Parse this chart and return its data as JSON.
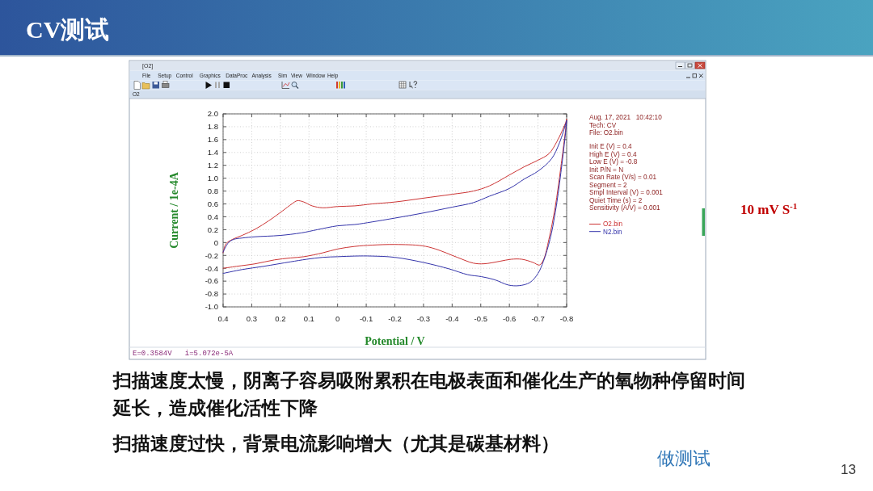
{
  "chart_data": {
    "type": "line",
    "title": "CV测试",
    "xlabel": "Potential / V",
    "ylabel": "Current / 1e-4A",
    "xlim": [
      0.4,
      -0.8
    ],
    "ylim": [
      -1,
      2
    ],
    "xticks": [
      0.4,
      0.3,
      0.2,
      0.1,
      0,
      -0.1,
      -0.2,
      -0.3,
      -0.4,
      -0.5,
      -0.6,
      -0.7,
      -0.8
    ],
    "yticks": [
      {
        "value": -1,
        "label": "-1.0"
      },
      -0.8,
      -0.6,
      -0.4,
      -0.2,
      0,
      0.2,
      0.4,
      0.6,
      0.8,
      {
        "value": 1,
        "label": "1.0"
      },
      1.2,
      1.4,
      1.6,
      1.8,
      {
        "value": 2,
        "label": "2.0"
      }
    ],
    "grid": true,
    "legend": "right",
    "series": [
      {
        "name": "O2.bin",
        "color": "#cc3333",
        "x": [
          0.4,
          0.39,
          0.367,
          0.334,
          0.287,
          0.24,
          0.193,
          0.16,
          0.141,
          0.118,
          0.089,
          0.052,
          0,
          -0.06,
          -0.12,
          -0.2,
          -0.3,
          -0.4,
          -0.474,
          -0.53,
          -0.6,
          -0.653,
          -0.7,
          -0.738,
          -0.766,
          -0.797,
          -0.8,
          -0.78,
          -0.76,
          -0.738,
          -0.719,
          -0.705,
          -0.683,
          -0.644,
          -0.606,
          -0.568,
          -0.512,
          -0.474,
          -0.418,
          -0.342,
          -0.295,
          -0.2,
          -0.12,
          -0.06,
          0,
          0.052,
          0.118,
          0.165,
          0.221,
          0.287,
          0.353,
          0.4
        ],
        "values": [
          -0.16,
          -0.02,
          0.05,
          0.11,
          0.21,
          0.34,
          0.49,
          0.6,
          0.65,
          0.63,
          0.57,
          0.54,
          0.56,
          0.57,
          0.6,
          0.63,
          0.69,
          0.75,
          0.8,
          0.88,
          1.05,
          1.18,
          1.28,
          1.38,
          1.57,
          1.87,
          1.92,
          1.18,
          0.55,
          0.05,
          -0.27,
          -0.35,
          -0.31,
          -0.26,
          -0.26,
          -0.29,
          -0.33,
          -0.32,
          -0.23,
          -0.1,
          -0.05,
          -0.03,
          -0.04,
          -0.06,
          -0.1,
          -0.16,
          -0.22,
          -0.24,
          -0.27,
          -0.33,
          -0.37,
          -0.4
        ]
      },
      {
        "name": "N2.bin",
        "color": "#3333aa",
        "x": [
          0.4,
          0.381,
          0.362,
          0.334,
          0.287,
          0.202,
          0.127,
          0.071,
          0,
          -0.06,
          -0.12,
          -0.2,
          -0.3,
          -0.4,
          -0.474,
          -0.53,
          -0.6,
          -0.653,
          -0.7,
          -0.747,
          -0.775,
          -0.797,
          -0.8,
          -0.78,
          -0.76,
          -0.742,
          -0.719,
          -0.7,
          -0.672,
          -0.634,
          -0.596,
          -0.55,
          -0.502,
          -0.455,
          -0.39,
          -0.3,
          -0.2,
          -0.12,
          -0.06,
          0,
          0.052,
          0.108,
          0.165,
          0.259,
          0.334,
          0.4
        ],
        "values": [
          -0.15,
          0,
          0.05,
          0.07,
          0.09,
          0.11,
          0.15,
          0.2,
          0.26,
          0.28,
          0.32,
          0.38,
          0.46,
          0.55,
          0.62,
          0.72,
          0.84,
          0.99,
          1.11,
          1.3,
          1.55,
          1.85,
          1.9,
          1.09,
          0.46,
          0.05,
          -0.29,
          -0.48,
          -0.62,
          -0.67,
          -0.66,
          -0.58,
          -0.53,
          -0.5,
          -0.41,
          -0.31,
          -0.23,
          -0.21,
          -0.21,
          -0.22,
          -0.23,
          -0.26,
          -0.3,
          -0.37,
          -0.42,
          -0.48
        ]
      }
    ],
    "annotations": [
      "[O2]",
      "File",
      "Setup",
      "Control",
      "Graphics",
      "DataProc",
      "Analysis",
      "Sim",
      "View",
      "Window",
      "Help",
      "O2",
      "Aug. 17, 2021   10:42:10",
      "Tech: CV",
      "File: O2.bin",
      "Init E (V) = 0.4",
      "High E (V) = 0.4",
      "Low E (V) = -0.8",
      "Init P/N = N",
      "Scan Rate (V/s) = 0.01",
      "Segment = 2",
      "Smpl Interval (V) = 0.001",
      "Quiet Time (s) = 2",
      "Sensitivity (A/V) = 0.001",
      "E=0.3584V   i=5.072e-5A",
      "10 mV S$^{-1}$",
      "扫描速度太慢，阴离子容易吸附累积在电极表面和催化生产的氧物种停留时间延长，造成催化活性下降",
      "扫描速度过快，背景电流影响增大（尤其是碳基材料）",
      "做测试",
      "13"
    ]
  }
}
